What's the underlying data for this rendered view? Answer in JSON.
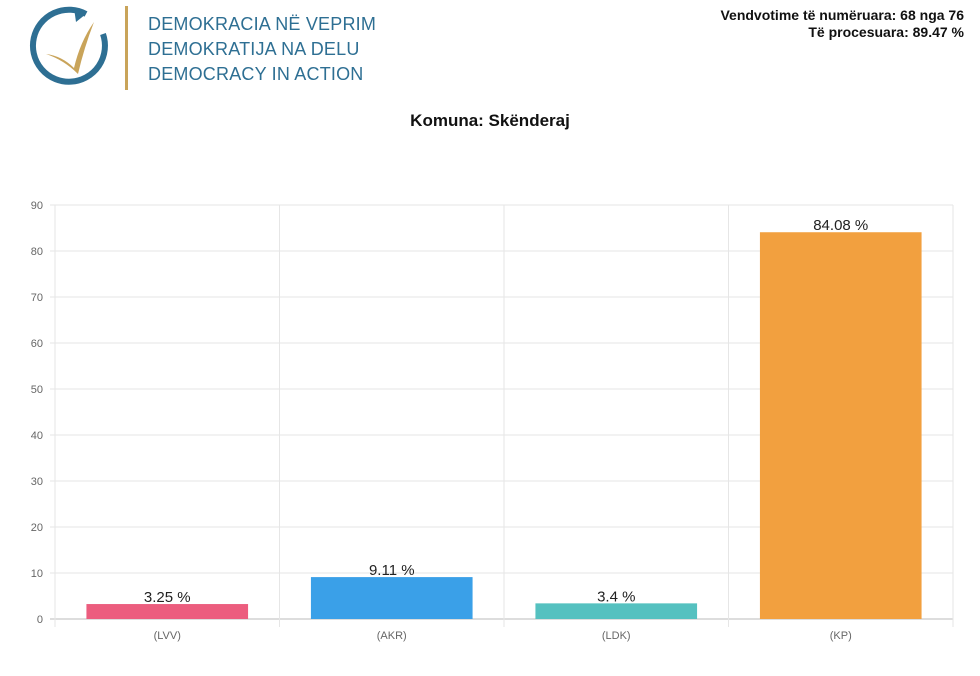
{
  "logo": {
    "lines": [
      "DEMOKRACIA NË VEPRIM",
      "DEMOKRATIJA NA DELU",
      "DEMOCRACY IN ACTION"
    ],
    "colors": {
      "blue": "#2e6f93",
      "gold": "#c9a45a"
    }
  },
  "stats": {
    "counted": "Vendvotime të numëruara: 68 nga 76",
    "processed": "Të procesuara: 89.47 %"
  },
  "chart_data": {
    "type": "bar",
    "title": "Komuna: Skënderaj",
    "categories": [
      "(LVV)",
      "(AKR)",
      "(LDK)",
      "(KP)"
    ],
    "values": [
      3.25,
      9.11,
      3.4,
      84.08
    ],
    "data_labels": [
      "3.25 %",
      "9.11 %",
      "3.4 %",
      "84.08 %"
    ],
    "colors": [
      "#ec5d7e",
      "#3aa0e8",
      "#55c1c0",
      "#f2a03f"
    ],
    "ylim": [
      0,
      90
    ],
    "yticks": [
      0,
      10,
      20,
      30,
      40,
      50,
      60,
      70,
      80,
      90
    ],
    "grid": true,
    "xlabel": "",
    "ylabel": ""
  }
}
